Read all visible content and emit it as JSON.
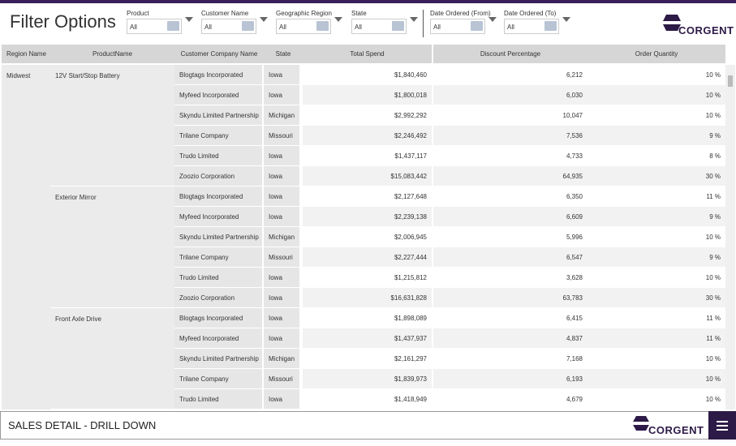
{
  "header": {
    "title": "Filter Options",
    "logo": "CORGENT"
  },
  "filters": [
    {
      "label": "Product",
      "value": "All"
    },
    {
      "label": "Customer Name",
      "value": "All"
    },
    {
      "label": "Geographic Region",
      "value": "All"
    },
    {
      "label": "State",
      "value": "All"
    },
    {
      "label": "Date Ordered (From)",
      "value": "All"
    },
    {
      "label": "Date Ordered (To)",
      "value": "All"
    }
  ],
  "table": {
    "columns": [
      "Region Name",
      "ProductName",
      "Customer Company Name",
      "State",
      "Total Spend",
      "Discount Percentage",
      "Order Quantity"
    ],
    "region": "Midwest",
    "groups": [
      {
        "product": "12V Start/Stop Battery",
        "rows": [
          [
            "Blogtags Incorporated",
            "Iowa",
            "$1,840,460",
            "6,212",
            "10 %"
          ],
          [
            "Myfeed Incorporated",
            "Iowa",
            "$1,800,018",
            "6,030",
            "10 %"
          ],
          [
            "Skyndu Limited Partnership",
            "Michigan",
            "$2,992,292",
            "10,047",
            "10 %"
          ],
          [
            "Trilane Company",
            "Missouri",
            "$2,246,492",
            "7,536",
            "9 %"
          ],
          [
            "Trudo Limited",
            "Iowa",
            "$1,437,117",
            "4,733",
            "8 %"
          ],
          [
            "Zoozio Corporation",
            "Iowa",
            "$15,083,442",
            "64,935",
            "30 %"
          ]
        ]
      },
      {
        "product": "Exterior Mirror",
        "rows": [
          [
            "Blogtags Incorporated",
            "Iowa",
            "$2,127,648",
            "6,350",
            "11 %"
          ],
          [
            "Myfeed Incorporated",
            "Iowa",
            "$2,239,138",
            "6,609",
            "9 %"
          ],
          [
            "Skyndu Limited Partnership",
            "Michigan",
            "$2,006,945",
            "5,996",
            "10 %"
          ],
          [
            "Trilane Company",
            "Missouri",
            "$2,227,444",
            "6,547",
            "9 %"
          ],
          [
            "Trudo Limited",
            "Iowa",
            "$1,215,812",
            "3,628",
            "10 %"
          ],
          [
            "Zoozio Corporation",
            "Iowa",
            "$16,631,828",
            "63,783",
            "30 %"
          ]
        ]
      },
      {
        "product": "Front Axle Drive",
        "rows": [
          [
            "Blogtags Incorporated",
            "Iowa",
            "$1,898,089",
            "6,415",
            "11 %"
          ],
          [
            "Myfeed Incorporated",
            "Iowa",
            "$1,437,937",
            "4,837",
            "11 %"
          ],
          [
            "Skyndu Limited Partnership",
            "Michigan",
            "$2,161,297",
            "7,168",
            "10 %"
          ],
          [
            "Trilane Company",
            "Missouri",
            "$1,839,973",
            "6,193",
            "10 %"
          ],
          [
            "Trudo Limited",
            "Iowa",
            "$1,418,949",
            "4,679",
            "10 %"
          ]
        ]
      }
    ]
  },
  "footer": {
    "title": "SALES DETAIL - DRILL DOWN",
    "logo": "CORGENT"
  }
}
